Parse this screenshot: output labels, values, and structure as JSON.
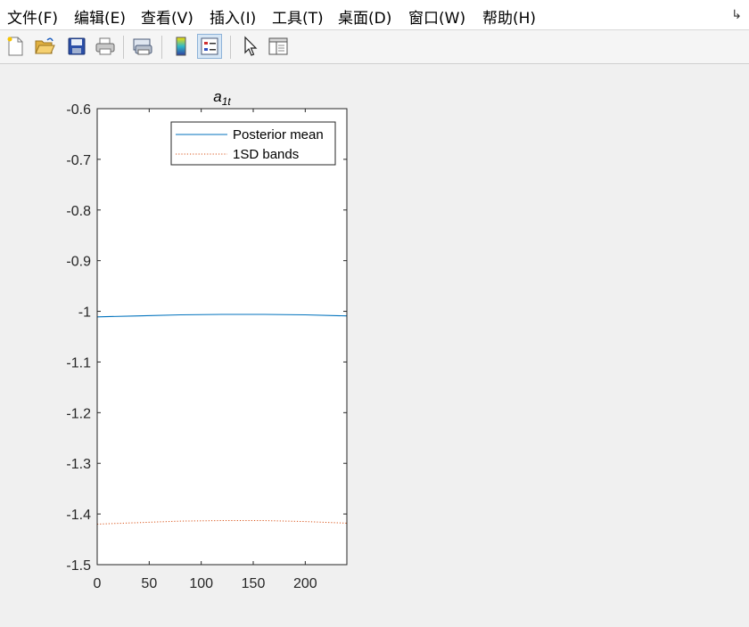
{
  "menu": {
    "items": [
      "文件(F)",
      "编辑(E)",
      "查看(V)",
      "插入(I)",
      "工具(T)",
      "桌面(D)",
      "窗口(W)",
      "帮助(H)"
    ]
  },
  "toolbar": {
    "buttons": [
      "new-figure",
      "open-file",
      "save",
      "print",
      "print-preview",
      "colorbar",
      "legend",
      "edit-plot",
      "property-inspector"
    ]
  },
  "chart_data": {
    "type": "line",
    "title_base": "a",
    "title_sub": "1t",
    "xlim": [
      0,
      240
    ],
    "ylim": [
      -1.5,
      -0.6
    ],
    "xticks": [
      "0",
      "50",
      "100",
      "150",
      "200"
    ],
    "yticks": [
      "-0.6",
      "-0.7",
      "-0.8",
      "-0.9",
      "-1",
      "-1.1",
      "-1.2",
      "-1.3",
      "-1.4",
      "-1.5"
    ],
    "legend_position": "top-right",
    "grid": false,
    "series": [
      {
        "name": "Posterior mean",
        "color": "#0072BD",
        "style": "solid",
        "x": [
          0,
          40,
          80,
          120,
          160,
          200,
          240
        ],
        "y": [
          -1.011,
          -1.009,
          -1.007,
          -1.006,
          -1.006,
          -1.007,
          -1.009
        ]
      },
      {
        "name": "1SD bands",
        "color": "#D95319",
        "style": "dotted",
        "x": [
          0,
          240
        ],
        "y": [
          -0.6,
          -0.6
        ]
      },
      {
        "name": "",
        "color": "#D95319",
        "style": "dotted",
        "x": [
          0,
          40,
          80,
          120,
          160,
          200,
          240
        ],
        "y": [
          -1.42,
          -1.417,
          -1.414,
          -1.413,
          -1.413,
          -1.415,
          -1.418
        ]
      }
    ]
  }
}
